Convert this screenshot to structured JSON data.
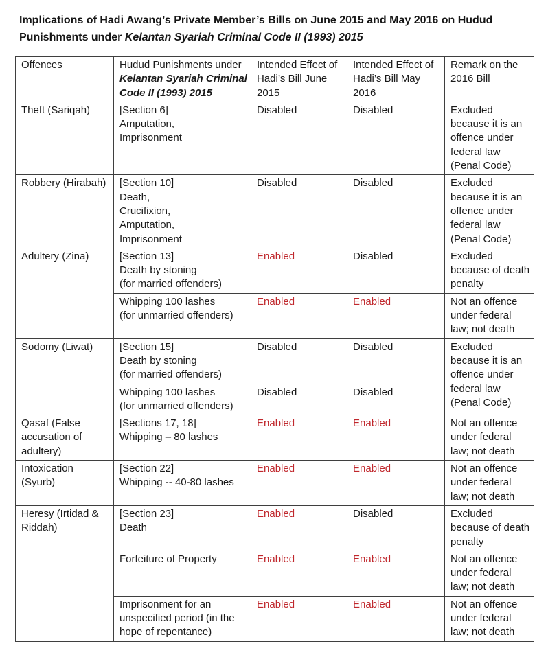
{
  "document": {
    "title": {
      "line1": "Implications of Hadi Awang’s Private Member’s Bills on June 2015 and May 2016 on Hudud",
      "line2_regular": "Punishments under ",
      "line2_italic": "Kelantan Syariah Criminal Code II (1993) 2015"
    }
  },
  "table": {
    "border_color": "#3f3f3f",
    "status_colors": {
      "Enabled": "#c0282d",
      "Disabled": "#1a1a1a"
    },
    "header": {
      "offence": "Offences",
      "punishment_regular": "Hudud Punishments under ",
      "punishment_italic": "Kelantan Syariah Criminal Code II (1993) 2015",
      "effect_june": "Intended Effect of Hadi’s Bill June 2015",
      "effect_may": "Intended Effect of Hadi’s Bill May 2016",
      "remark": "Remark on the 2016 Bill"
    },
    "rows": [
      {
        "name": "theft",
        "cells": [
          {
            "col": "offence",
            "text": "Theft (Sariqah)"
          },
          {
            "col": "punishment",
            "text": "[Section 6]\nAmputation,\nImprisonment"
          },
          {
            "col": "effect_june",
            "status": "Disabled"
          },
          {
            "col": "effect_may",
            "status": "Disabled"
          },
          {
            "col": "remark",
            "text": "Excluded because it is an offence under federal law (Penal Code)"
          }
        ]
      },
      {
        "name": "robbery",
        "cells": [
          {
            "col": "offence",
            "text": "Robbery (Hirabah)"
          },
          {
            "col": "punishment",
            "text": "[Section 10]\nDeath,\nCrucifixion,\nAmputation,\nImprisonment"
          },
          {
            "col": "effect_june",
            "status": "Disabled"
          },
          {
            "col": "effect_may",
            "status": "Disabled"
          },
          {
            "col": "remark",
            "text": "Excluded because it is an offence under federal law (Penal Code)"
          }
        ]
      },
      {
        "name": "adultery-married",
        "cells": [
          {
            "col": "offence",
            "text": "Adultery (Zina)",
            "rowspan": 2
          },
          {
            "col": "punishment",
            "text": "[Section 13]\nDeath by stoning\n(for married offenders)"
          },
          {
            "col": "effect_june",
            "status": "Enabled"
          },
          {
            "col": "effect_may",
            "status": "Disabled"
          },
          {
            "col": "remark",
            "text": "Excluded because of death penalty"
          }
        ]
      },
      {
        "name": "adultery-unmarried",
        "cells": [
          {
            "col": "punishment",
            "text": "Whipping 100 lashes\n(for unmarried offenders)"
          },
          {
            "col": "effect_june",
            "status": "Enabled"
          },
          {
            "col": "effect_may",
            "status": "Enabled"
          },
          {
            "col": "remark",
            "text": "Not an offence under federal law; not death"
          }
        ]
      },
      {
        "name": "sodomy-married",
        "cells": [
          {
            "col": "offence",
            "text": "Sodomy (Liwat)",
            "rowspan": 2
          },
          {
            "col": "punishment",
            "text": "[Section 15]\nDeath by stoning\n(for married offenders)"
          },
          {
            "col": "effect_june",
            "status": "Disabled"
          },
          {
            "col": "effect_may",
            "status": "Disabled"
          },
          {
            "col": "remark",
            "text": "Excluded because it is an offence under federal law (Penal Code)",
            "rowspan": 2
          }
        ]
      },
      {
        "name": "sodomy-unmarried",
        "cells": [
          {
            "col": "punishment",
            "text": "Whipping 100 lashes\n(for unmarried offenders)"
          },
          {
            "col": "effect_june",
            "status": "Disabled"
          },
          {
            "col": "effect_may",
            "status": "Disabled"
          }
        ]
      },
      {
        "name": "qasaf",
        "cells": [
          {
            "col": "offence",
            "text": "Qasaf (False accusation of adultery)"
          },
          {
            "col": "punishment",
            "text": "[Sections 17, 18]\nWhipping – 80 lashes"
          },
          {
            "col": "effect_june",
            "status": "Enabled"
          },
          {
            "col": "effect_may",
            "status": "Enabled"
          },
          {
            "col": "remark",
            "text": "Not an offence under federal law; not death"
          }
        ]
      },
      {
        "name": "intoxication",
        "cells": [
          {
            "col": "offence",
            "text": "Intoxication (Syurb)"
          },
          {
            "col": "punishment",
            "text": "[Section 22]\nWhipping -- 40-80 lashes"
          },
          {
            "col": "effect_june",
            "status": "Enabled"
          },
          {
            "col": "effect_may",
            "status": "Enabled"
          },
          {
            "col": "remark",
            "text": "Not an offence under federal law; not death"
          }
        ]
      },
      {
        "name": "heresy-death",
        "cells": [
          {
            "col": "offence",
            "text": "Heresy (Irtidad & Riddah)",
            "rowspan": 3
          },
          {
            "col": "punishment",
            "text": "[Section 23]\nDeath"
          },
          {
            "col": "effect_june",
            "status": "Enabled"
          },
          {
            "col": "effect_may",
            "status": "Disabled"
          },
          {
            "col": "remark",
            "text": "Excluded because of death penalty"
          }
        ]
      },
      {
        "name": "heresy-forfeiture",
        "cells": [
          {
            "col": "punishment",
            "text": "Forfeiture of Property"
          },
          {
            "col": "effect_june",
            "status": "Enabled"
          },
          {
            "col": "effect_may",
            "status": "Enabled"
          },
          {
            "col": "remark",
            "text": "Not an offence under federal law; not death"
          }
        ]
      },
      {
        "name": "heresy-imprisonment",
        "cells": [
          {
            "col": "punishment",
            "text": "Imprisonment for an unspecified period (in the hope of repentance)"
          },
          {
            "col": "effect_june",
            "status": "Enabled"
          },
          {
            "col": "effect_may",
            "status": "Enabled"
          },
          {
            "col": "remark",
            "text": "Not an offence under federal law; not death"
          }
        ]
      }
    ]
  }
}
